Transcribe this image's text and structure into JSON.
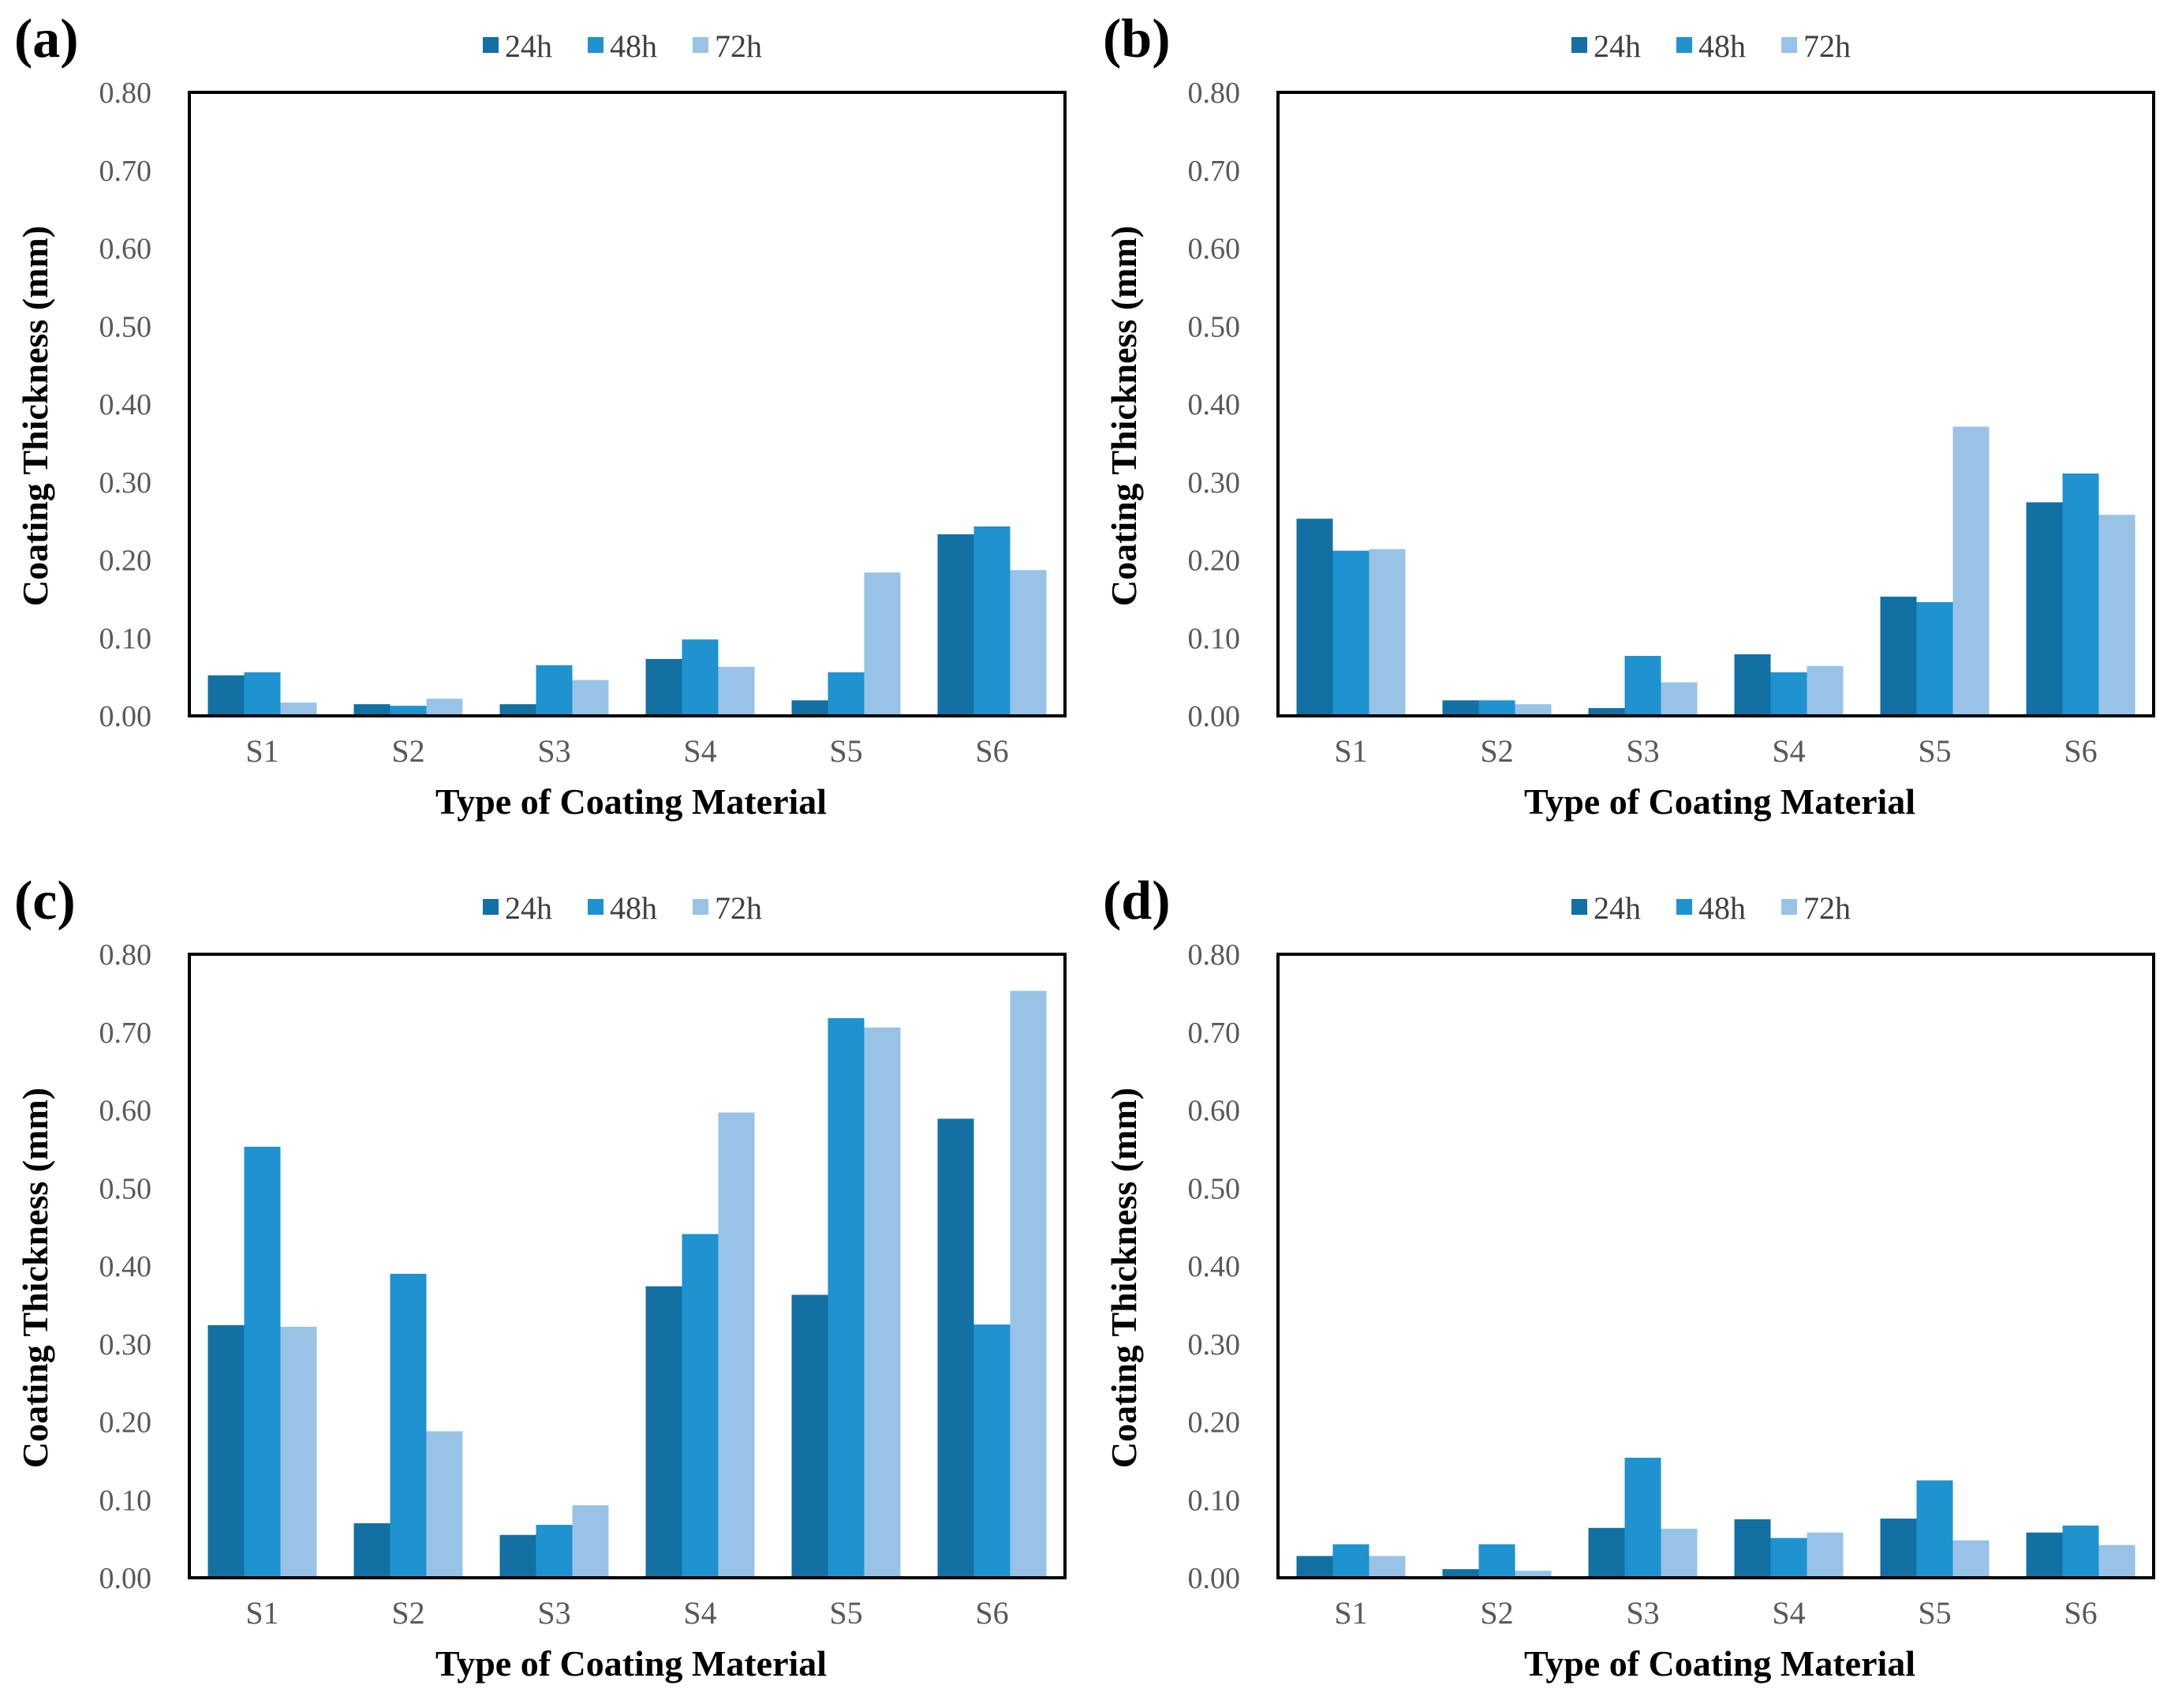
{
  "colors": {
    "24h": "#1270a2",
    "48h": "#1e93cf",
    "72h": "#99c3e6"
  },
  "chart_data": [
    {
      "type": "bar",
      "panel": "(a)",
      "categories": [
        "S1",
        "S2",
        "S3",
        "S4",
        "S5",
        "S6"
      ],
      "series": [
        {
          "name": "24h",
          "values": [
            0.052,
            0.015,
            0.015,
            0.073,
            0.02,
            0.233
          ]
        },
        {
          "name": "48h",
          "values": [
            0.056,
            0.013,
            0.065,
            0.098,
            0.056,
            0.243
          ]
        },
        {
          "name": "72h",
          "values": [
            0.017,
            0.022,
            0.046,
            0.063,
            0.184,
            0.187
          ]
        }
      ],
      "xlabel": "Type of Coating Material",
      "ylabel": "Coating Thickness (mm)",
      "ylim": [
        0,
        0.8
      ],
      "yticks": [
        "0.00",
        "0.10",
        "0.20",
        "0.30",
        "0.40",
        "0.50",
        "0.60",
        "0.70",
        "0.80"
      ],
      "legend_position": "top-center"
    },
    {
      "type": "bar",
      "panel": "(b)",
      "categories": [
        "S1",
        "S2",
        "S3",
        "S4",
        "S5",
        "S6"
      ],
      "series": [
        {
          "name": "24h",
          "values": [
            0.253,
            0.02,
            0.01,
            0.079,
            0.153,
            0.274
          ]
        },
        {
          "name": "48h",
          "values": [
            0.212,
            0.02,
            0.077,
            0.056,
            0.146,
            0.311
          ]
        },
        {
          "name": "72h",
          "values": [
            0.214,
            0.015,
            0.043,
            0.064,
            0.371,
            0.258
          ]
        }
      ],
      "xlabel": "Type of Coating Material",
      "ylabel": "Coating Thickness (mm)",
      "ylim": [
        0,
        0.8
      ],
      "yticks": [
        "0.00",
        "0.10",
        "0.20",
        "0.30",
        "0.40",
        "0.50",
        "0.60",
        "0.70",
        "0.80"
      ],
      "legend_position": "top-center"
    },
    {
      "type": "bar",
      "panel": "(c)",
      "categories": [
        "S1",
        "S2",
        "S3",
        "S4",
        "S5",
        "S6"
      ],
      "series": [
        {
          "name": "24h",
          "values": [
            0.324,
            0.07,
            0.055,
            0.374,
            0.363,
            0.589
          ]
        },
        {
          "name": "48h",
          "values": [
            0.553,
            0.39,
            0.068,
            0.441,
            0.718,
            0.325
          ]
        },
        {
          "name": "72h",
          "values": [
            0.322,
            0.188,
            0.093,
            0.597,
            0.706,
            0.753
          ]
        }
      ],
      "xlabel": "Type of Coating Material",
      "ylabel": "Coating Thickness (mm)",
      "ylim": [
        0,
        0.8
      ],
      "yticks": [
        "0.00",
        "0.10",
        "0.20",
        "0.30",
        "0.40",
        "0.50",
        "0.60",
        "0.70",
        "0.80"
      ],
      "legend_position": "top-center"
    },
    {
      "type": "bar",
      "panel": "(d)",
      "categories": [
        "S1",
        "S2",
        "S3",
        "S4",
        "S5",
        "S6"
      ],
      "series": [
        {
          "name": "24h",
          "values": [
            0.028,
            0.011,
            0.064,
            0.075,
            0.076,
            0.058
          ]
        },
        {
          "name": "48h",
          "values": [
            0.043,
            0.043,
            0.154,
            0.051,
            0.125,
            0.067
          ]
        },
        {
          "name": "72h",
          "values": [
            0.028,
            0.009,
            0.063,
            0.058,
            0.048,
            0.042
          ]
        }
      ],
      "xlabel": "Type of Coating Material",
      "ylabel": "Coating Thickness (mm)",
      "ylim": [
        0,
        0.8
      ],
      "yticks": [
        "0.00",
        "0.10",
        "0.20",
        "0.30",
        "0.40",
        "0.50",
        "0.60",
        "0.70",
        "0.80"
      ],
      "legend_position": "top-center"
    }
  ]
}
